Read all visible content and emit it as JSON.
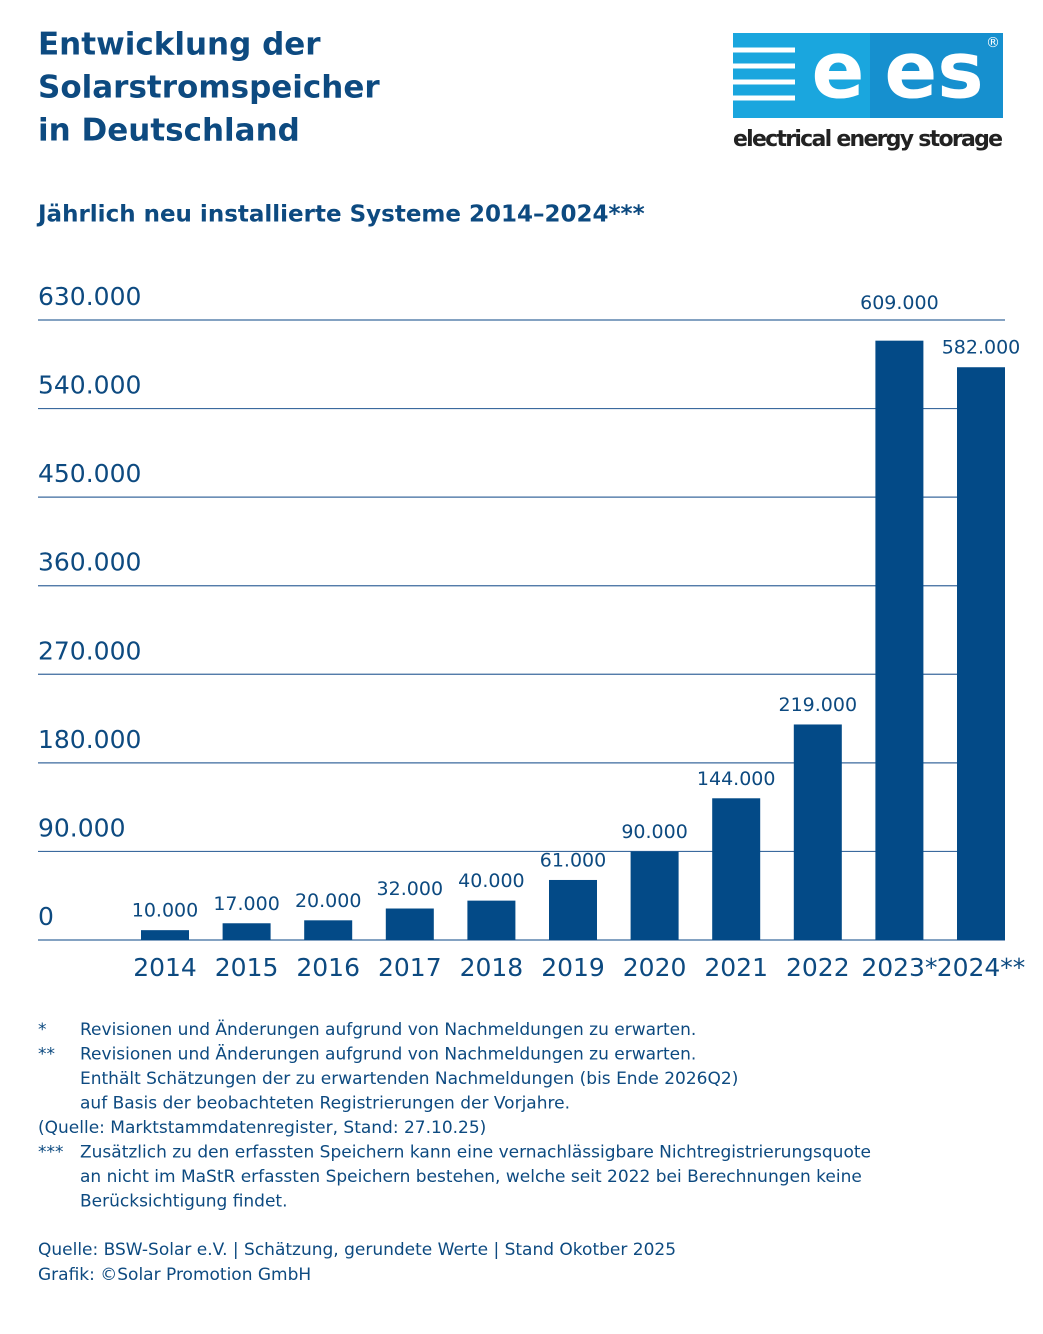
{
  "chart_data": {
    "type": "bar",
    "title": [
      "Entwicklung der",
      "Solarstromspeicher",
      "in Deutschland"
    ],
    "subtitle": "Jährlich neu installierte Systeme 2014–2024***",
    "categories": [
      "2014",
      "2015",
      "2016",
      "2017",
      "2018",
      "2019",
      "2020",
      "2021",
      "2022",
      "2023*",
      "2024**"
    ],
    "values": [
      10000,
      17000,
      20000,
      32000,
      40000,
      61000,
      90000,
      144000,
      219000,
      609000,
      582000
    ],
    "value_labels": [
      "10.000",
      "17.000",
      "20.000",
      "32.000",
      "40.000",
      "61.000",
      "90.000",
      "144.000",
      "219.000",
      "609.000",
      "582.000"
    ],
    "color": "#034a87",
    "ylim": [
      0,
      630000
    ],
    "yticks": [
      0,
      {
        "value": 90000,
        "label": "90.000"
      },
      {
        "value": 180000,
        "label": "180.000"
      },
      {
        "value": 270000,
        "label": "270.000"
      },
      {
        "value": 360000,
        "label": "360.000"
      },
      {
        "value": 450000,
        "label": "450.000"
      },
      {
        "value": 540000,
        "label": "540.000"
      },
      {
        "value": 630000,
        "label": "630.000"
      }
    ],
    "grid": true
  },
  "logo": {
    "mark_e": "e",
    "mark_es": "es",
    "registered": "®",
    "tagline": "electrical energy storage"
  },
  "footnotes": [
    {
      "marker": "*",
      "lines": [
        "Revisionen und Änderungen aufgrund von Nachmeldungen zu erwarten."
      ]
    },
    {
      "marker": "**",
      "lines": [
        "Revisionen und Änderungen aufgrund von Nachmeldungen zu erwarten.",
        "Enthält Schätzungen der zu erwartenden Nachmeldungen (bis Ende 2026Q2)",
        "auf Basis der beobachteten Registrierungen der Vorjahre."
      ]
    },
    {
      "lines": [
        "(Quelle: Marktstammdatenregister, Stand: 27.10.25)"
      ]
    },
    {
      "marker": "***",
      "lines": [
        "Zusätzlich zu den erfassten Speichern kann eine vernachlässigbare Nichtregistrierungsquote",
        "an nicht im MaStR erfassten Speichern bestehen, welche seit 2022 bei Berechnungen keine",
        "Berücksichtigung findet."
      ]
    }
  ],
  "source": [
    "Quelle: BSW-Solar e.V. | Schätzung, gerundete Werte | Stand Okotber 2025",
    "Grafik: ©Solar Promotion GmbH"
  ]
}
